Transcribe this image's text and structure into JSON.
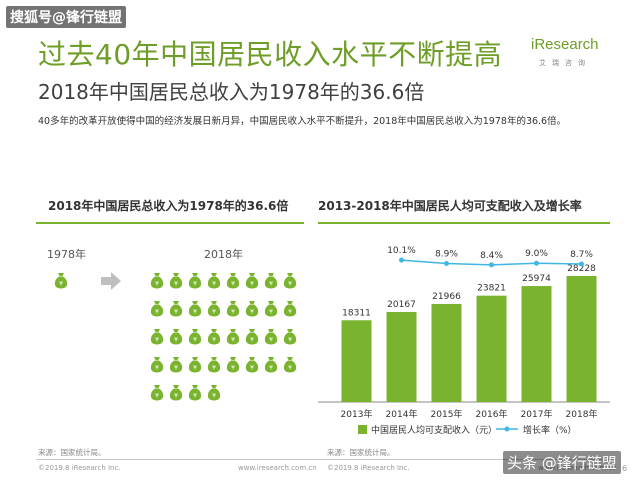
{
  "watermark_top": "搜狐号@锋行链盟",
  "title": "过去40年中国居民收入水平不断提高",
  "subtitle": "2018年中国居民总收入为1978年的36.6倍",
  "description": "40多年的改革开放使得中国的经济发展日新月异，中国居民收入水平不断提升，2018年中国居民总收入为1978年的36.6倍。",
  "logo": {
    "word": "iResearch",
    "sub": "艾瑞咨询"
  },
  "left_panel": {
    "title": "2018年中国居民总收入为1978年的36.6倍",
    "year_before": "1978年",
    "year_after": "2018年",
    "source": "来源：国家统计局。",
    "footer_left": "©2019.8 iResearch Inc.",
    "footer_right": "www.iresearch.com.cn"
  },
  "right_panel": {
    "title": "2013-2018年中国居民人均可支配收入及增长率",
    "source": "来源：国家统计局。",
    "footer_left": "©2019.8 iResearch Inc.",
    "footer_right": "www.iresearch.com.cn"
  },
  "watermark_bottom": "头条 @锋行链盟",
  "page_number": "6",
  "colors": {
    "accent": "#6e9d28",
    "bar": "#7ab32e",
    "line": "#3fb7e3"
  },
  "chart_data": {
    "type": "bar",
    "categories": [
      "2013年",
      "2014年",
      "2015年",
      "2016年",
      "2017年",
      "2018年"
    ],
    "series": [
      {
        "name": "中国居民人均可支配收入（元）",
        "type": "bar",
        "values": [
          18311,
          20167,
          21966,
          23821,
          25974,
          28228
        ]
      },
      {
        "name": "增长率（%）",
        "type": "line",
        "values": [
          null,
          10.1,
          8.9,
          8.4,
          9.0,
          8.7
        ],
        "labels": [
          "",
          "10.1%",
          "8.9%",
          "8.4%",
          "9.0%",
          "8.7%"
        ]
      }
    ],
    "legend_position": "bottom",
    "grid": false
  }
}
